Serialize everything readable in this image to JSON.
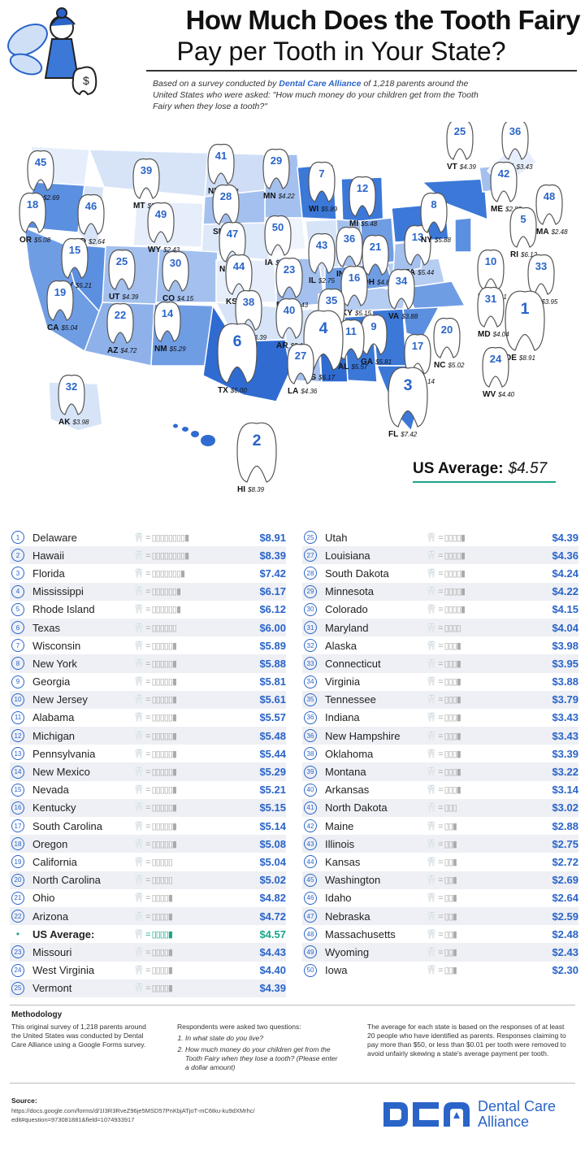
{
  "header": {
    "title_line1": "How Much Does the Tooth Fairy",
    "title_line2": "Pay per Tooth in Your State?",
    "subtitle_pre": "Based on a survey conducted by ",
    "subtitle_brand": "Dental Care Alliance",
    "subtitle_post": " of 1,218 parents around the United States who were asked: \"How much money do your children get from the Tooth Fairy when they lose a tooth?\""
  },
  "map_labels": [
    {
      "abbr": "WA",
      "rank": "45",
      "value": "$2.69"
    },
    {
      "abbr": "OR",
      "rank": "18",
      "value": "$5.08"
    },
    {
      "abbr": "ID",
      "rank": "46",
      "value": "$2.64"
    },
    {
      "abbr": "MT",
      "rank": "39",
      "value": "$3.22"
    },
    {
      "abbr": "ND",
      "rank": "41",
      "value": "$3.02"
    },
    {
      "abbr": "MN",
      "rank": "29",
      "value": "$4.22"
    },
    {
      "abbr": "WI",
      "rank": "7",
      "value": "$5.89"
    },
    {
      "abbr": "MI",
      "rank": "12",
      "value": "$5.48"
    },
    {
      "abbr": "SD",
      "rank": "28",
      "value": "$4.24"
    },
    {
      "abbr": "WY",
      "rank": "49",
      "value": "$2.43"
    },
    {
      "abbr": "NE",
      "rank": "47",
      "value": "$2.59"
    },
    {
      "abbr": "IA",
      "rank": "50",
      "value": "$2.30"
    },
    {
      "abbr": "IL",
      "rank": "43",
      "value": "$2.75"
    },
    {
      "abbr": "IN",
      "rank": "36",
      "value": "$3.43"
    },
    {
      "abbr": "OH",
      "rank": "21",
      "value": "$4.82"
    },
    {
      "abbr": "PA",
      "rank": "13",
      "value": "$5.44"
    },
    {
      "abbr": "NY",
      "rank": "8",
      "value": "$5.88"
    },
    {
      "abbr": "VT",
      "rank": "25",
      "value": "$4.39"
    },
    {
      "abbr": "NH",
      "rank": "36",
      "value": "$3.43"
    },
    {
      "abbr": "ME",
      "rank": "42",
      "value": "$2.88"
    },
    {
      "abbr": "MA",
      "rank": "48",
      "value": "$2.48"
    },
    {
      "abbr": "RI",
      "rank": "5",
      "value": "$6.12"
    },
    {
      "abbr": "CT",
      "rank": "33",
      "value": "$3.95"
    },
    {
      "abbr": "NJ",
      "rank": "10",
      "value": "$5.61"
    },
    {
      "abbr": "DE",
      "rank": "1",
      "value": "$8.91"
    },
    {
      "abbr": "MD",
      "rank": "31",
      "value": "$4.04"
    },
    {
      "abbr": "NV",
      "rank": "15",
      "value": "$5.21"
    },
    {
      "abbr": "UT",
      "rank": "25",
      "value": "$4.39"
    },
    {
      "abbr": "CO",
      "rank": "30",
      "value": "$4.15"
    },
    {
      "abbr": "KS",
      "rank": "44",
      "value": "$2.72"
    },
    {
      "abbr": "MO",
      "rank": "23",
      "value": "$4.43"
    },
    {
      "abbr": "KY",
      "rank": "16",
      "value": "$5.15"
    },
    {
      "abbr": "VA",
      "rank": "34",
      "value": "$3.88"
    },
    {
      "abbr": "WV",
      "rank": "24",
      "value": "$4.40"
    },
    {
      "abbr": "CA",
      "rank": "19",
      "value": "$5.04"
    },
    {
      "abbr": "AZ",
      "rank": "22",
      "value": "$4.72"
    },
    {
      "abbr": "NM",
      "rank": "14",
      "value": "$5.29"
    },
    {
      "abbr": "OK",
      "rank": "38",
      "value": "$3.39"
    },
    {
      "abbr": "AR",
      "rank": "40",
      "value": "$3.14"
    },
    {
      "abbr": "TN",
      "rank": "35",
      "value": "$3.79"
    },
    {
      "abbr": "NC",
      "rank": "20",
      "value": "$5.02"
    },
    {
      "abbr": "SC",
      "rank": "17",
      "value": "$5.14"
    },
    {
      "abbr": "GA",
      "rank": "9",
      "value": "$5.81"
    },
    {
      "abbr": "AL",
      "rank": "11",
      "value": "$5.57"
    },
    {
      "abbr": "MS",
      "rank": "4",
      "value": "$6.17"
    },
    {
      "abbr": "LA",
      "rank": "27",
      "value": "$4.36"
    },
    {
      "abbr": "TX",
      "rank": "6",
      "value": "$6.00"
    },
    {
      "abbr": "FL",
      "rank": "3",
      "value": "$7.42"
    },
    {
      "abbr": "AK",
      "rank": "32",
      "value": "$3.98"
    },
    {
      "abbr": "HI",
      "rank": "2",
      "value": "$8.39"
    }
  ],
  "us_average": {
    "label": "US Average:",
    "value": "$4.57"
  },
  "table": {
    "left": [
      {
        "rank": "1",
        "state": "Delaware",
        "value": "$8.91"
      },
      {
        "rank": "2",
        "state": "Hawaii",
        "value": "$8.39"
      },
      {
        "rank": "3",
        "state": "Florida",
        "value": "$7.42"
      },
      {
        "rank": "4",
        "state": "Mississippi",
        "value": "$6.17"
      },
      {
        "rank": "5",
        "state": "Rhode Island",
        "value": "$6.12"
      },
      {
        "rank": "6",
        "state": "Texas",
        "value": "$6.00"
      },
      {
        "rank": "7",
        "state": "Wisconsin",
        "value": "$5.89"
      },
      {
        "rank": "8",
        "state": "New York",
        "value": "$5.88"
      },
      {
        "rank": "9",
        "state": "Georgia",
        "value": "$5.81"
      },
      {
        "rank": "10",
        "state": "New Jersey",
        "value": "$5.61"
      },
      {
        "rank": "11",
        "state": "Alabama",
        "value": "$5.57"
      },
      {
        "rank": "12",
        "state": "Michigan",
        "value": "$5.48"
      },
      {
        "rank": "13",
        "state": "Pennsylvania",
        "value": "$5.44"
      },
      {
        "rank": "14",
        "state": "New Mexico",
        "value": "$5.29"
      },
      {
        "rank": "15",
        "state": "Nevada",
        "value": "$5.21"
      },
      {
        "rank": "16",
        "state": "Kentucky",
        "value": "$5.15"
      },
      {
        "rank": "17",
        "state": "South Carolina",
        "value": "$5.14"
      },
      {
        "rank": "18",
        "state": "Oregon",
        "value": "$5.08"
      },
      {
        "rank": "19",
        "state": "California",
        "value": "$5.04"
      },
      {
        "rank": "20",
        "state": "North Carolina",
        "value": "$5.02"
      },
      {
        "rank": "21",
        "state": "Ohio",
        "value": "$4.82"
      },
      {
        "rank": "22",
        "state": "Arizona",
        "value": "$4.72"
      },
      {
        "rank": "•",
        "state": "US Average:",
        "value": "$4.57",
        "avg": true
      },
      {
        "rank": "23",
        "state": "Missouri",
        "value": "$4.43"
      },
      {
        "rank": "24",
        "state": "West Virginia",
        "value": "$4.40"
      },
      {
        "rank": "25",
        "state": "Vermont",
        "value": "$4.39"
      }
    ],
    "right": [
      {
        "rank": "25",
        "state": "Utah",
        "value": "$4.39"
      },
      {
        "rank": "27",
        "state": "Louisiana",
        "value": "$4.36"
      },
      {
        "rank": "28",
        "state": "South Dakota",
        "value": "$4.24"
      },
      {
        "rank": "29",
        "state": "Minnesota",
        "value": "$4.22"
      },
      {
        "rank": "30",
        "state": "Colorado",
        "value": "$4.15"
      },
      {
        "rank": "31",
        "state": "Maryland",
        "value": "$4.04"
      },
      {
        "rank": "32",
        "state": "Alaska",
        "value": "$3.98"
      },
      {
        "rank": "33",
        "state": "Connecticut",
        "value": "$3.95"
      },
      {
        "rank": "34",
        "state": "Virginia",
        "value": "$3.88"
      },
      {
        "rank": "35",
        "state": "Tennessee",
        "value": "$3.79"
      },
      {
        "rank": "36",
        "state": "Indiana",
        "value": "$3.43"
      },
      {
        "rank": "36",
        "state": "New Hampshire",
        "value": "$3.43"
      },
      {
        "rank": "38",
        "state": "Oklahoma",
        "value": "$3.39"
      },
      {
        "rank": "39",
        "state": "Montana",
        "value": "$3.22"
      },
      {
        "rank": "40",
        "state": "Arkansas",
        "value": "$3.14"
      },
      {
        "rank": "41",
        "state": "North Dakota",
        "value": "$3.02"
      },
      {
        "rank": "42",
        "state": "Maine",
        "value": "$2.88"
      },
      {
        "rank": "43",
        "state": "Illinois",
        "value": "$2.75"
      },
      {
        "rank": "44",
        "state": "Kansas",
        "value": "$2.72"
      },
      {
        "rank": "45",
        "state": "Washington",
        "value": "$2.69"
      },
      {
        "rank": "46",
        "state": "Idaho",
        "value": "$2.64"
      },
      {
        "rank": "47",
        "state": "Nebraska",
        "value": "$2.59"
      },
      {
        "rank": "48",
        "state": "Massachusetts",
        "value": "$2.48"
      },
      {
        "rank": "49",
        "state": "Wyoming",
        "value": "$2.43"
      },
      {
        "rank": "50",
        "state": "Iowa",
        "value": "$2.30"
      }
    ]
  },
  "methodology": {
    "title": "Methodology",
    "col1": "This original survey of 1,218 parents around the United States was conducted by Dental Care Alliance using a Google Forms survey.",
    "col2_intro": "Respondents were asked two questions:",
    "q1": "In what state do you live?",
    "q2": "How much money do your children get from the Tooth Fairy when they lose a tooth? (Please enter a dollar amount)",
    "col3": "The average for each state is based on the responses of at least 20 people who have identified as parents. Responses claiming to pay more than $50, or less than $0.01 per tooth were removed to avoid unfairly skewing a state's average payment per tooth."
  },
  "source": {
    "title": "Source:",
    "url": "https://docs.google.com/forms/d/1I3R3RveZ96je5MSD57PnKbjATjoT-mC6tku-ku9dXMrhc/edit#question=973081881&field=1074933917"
  },
  "logo": {
    "line1": "Dental Care",
    "line2": "Alliance"
  },
  "colors": {
    "accent": "#2a64c8",
    "avg": "#1aa58a"
  }
}
